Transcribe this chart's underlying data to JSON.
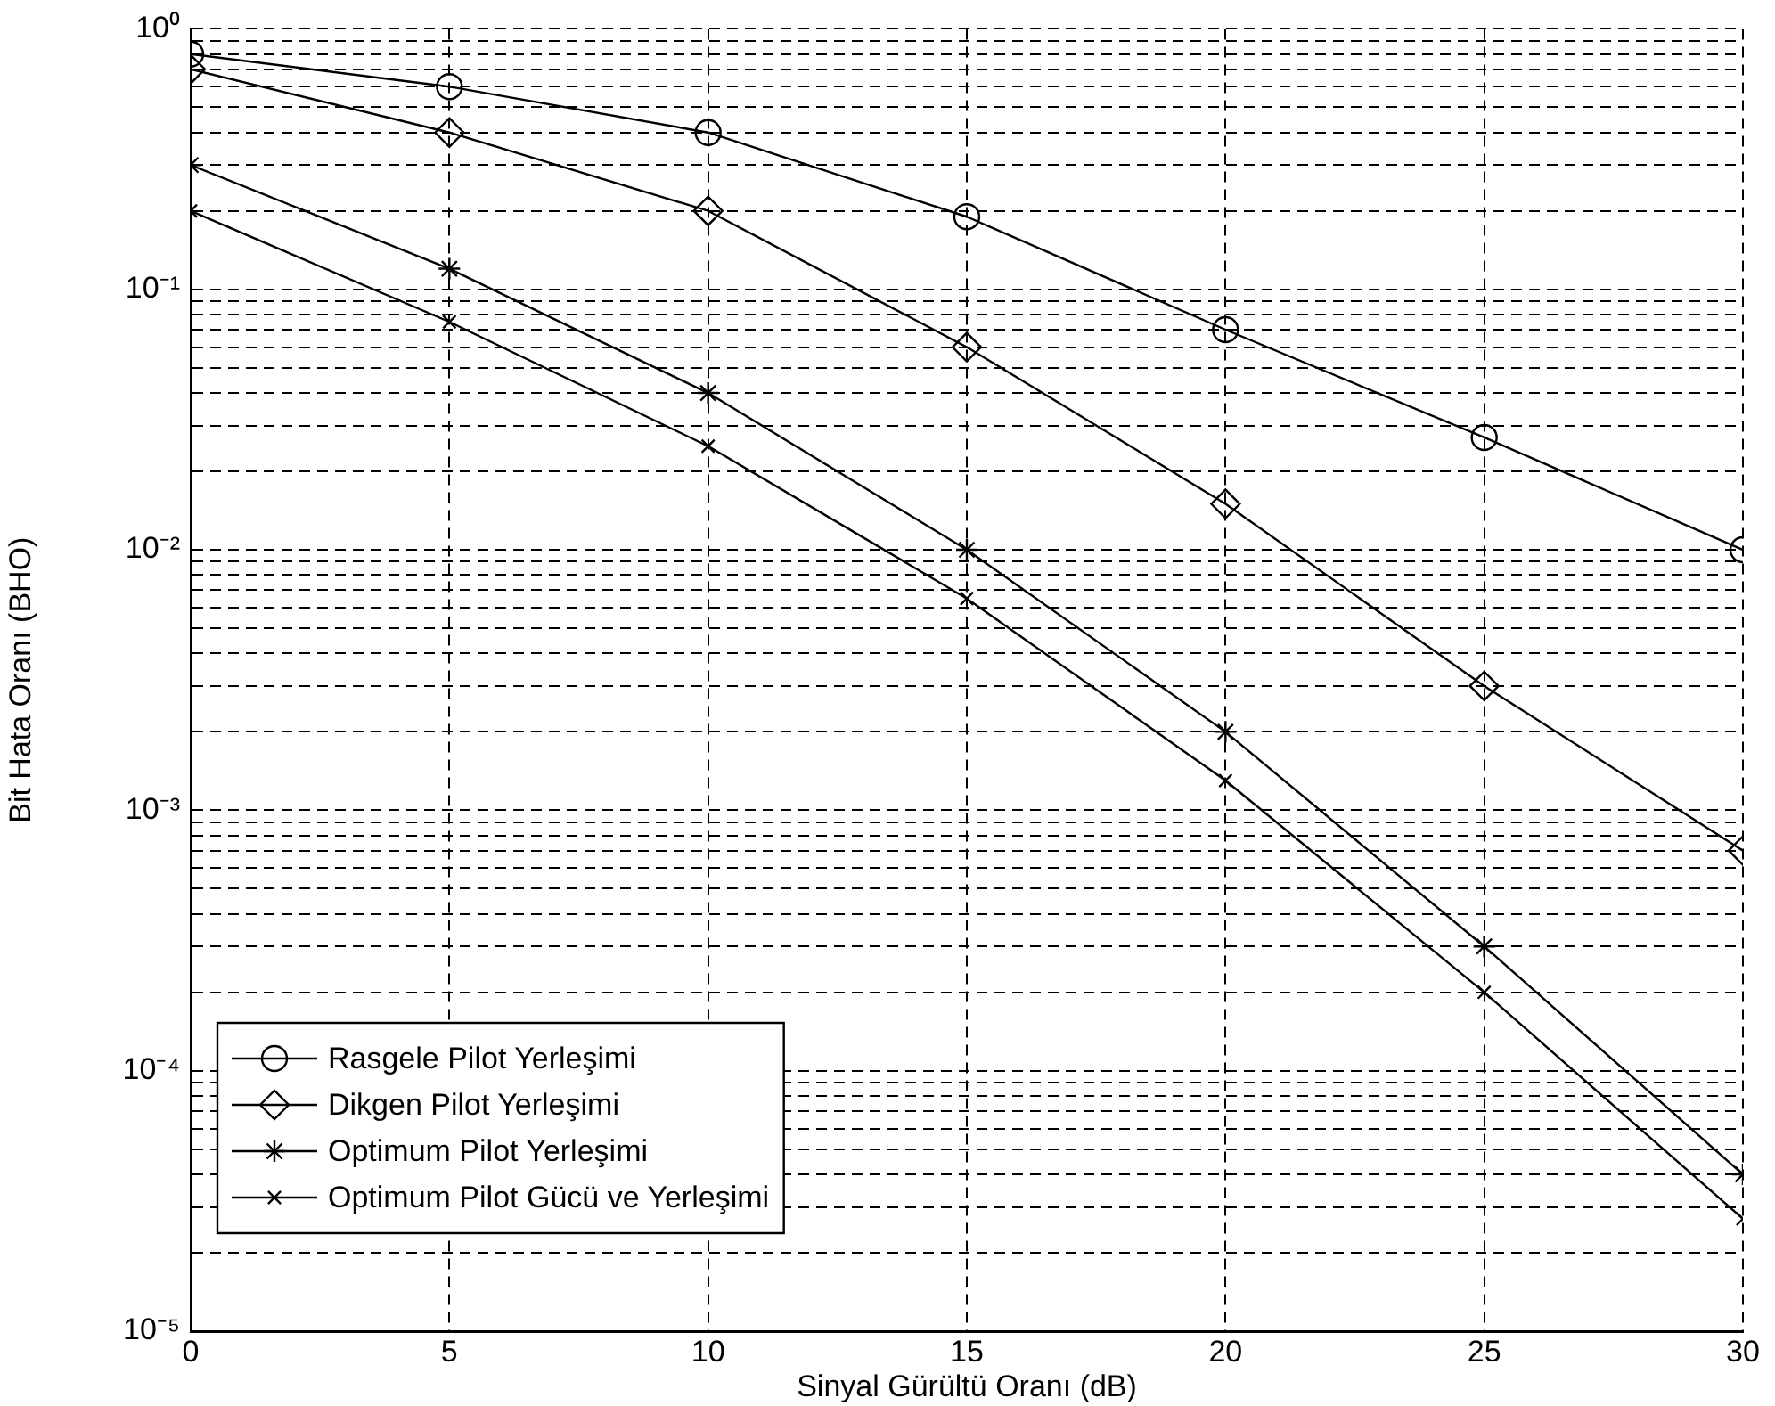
{
  "chart_data": {
    "type": "line",
    "xlabel": "Sinyal Gürültü Oranı (dB)",
    "ylabel": "Bit Hata Oranı (BHO)",
    "x": [
      0,
      5,
      10,
      15,
      20,
      25,
      30
    ],
    "series": [
      {
        "name": "Rasgele Pilot Yerleşimi",
        "color": "#000000",
        "marker": "circle",
        "values": [
          0.8,
          0.6,
          0.4,
          0.19,
          0.07,
          0.027,
          0.01
        ]
      },
      {
        "name": "Dikgen Pilot Yerleşimi",
        "color": "#000000",
        "marker": "diamond",
        "values": [
          0.7,
          0.4,
          0.2,
          0.06,
          0.015,
          0.003,
          0.0007
        ]
      },
      {
        "name": "Optimum Pilot Yerleşimi",
        "color": "#000000",
        "marker": "cross",
        "values": [
          0.3,
          0.12,
          0.04,
          0.01,
          0.002,
          0.0003,
          4e-05
        ]
      },
      {
        "name": "Optimum Pilot Gücü ve Yerleşimi",
        "color": "#000000",
        "marker": "cross",
        "values": [
          0.2,
          0.075,
          0.025,
          0.0065,
          0.0013,
          0.0002,
          2.7e-05
        ]
      }
    ],
    "log": "y",
    "grid": true,
    "legend": "bottom left",
    "line_style": "solid",
    "xlim": [
      0,
      30
    ],
    "xticks": [
      0,
      5,
      10,
      15,
      20,
      25,
      30
    ],
    "ylim": [
      1e-05,
      1
    ],
    "yticks": [
      {
        "value": 1e-05,
        "label": "10⁻⁵"
      },
      {
        "value": 2e-05,
        "label": null
      },
      {
        "value": 3e-05,
        "label": null
      },
      {
        "value": 4e-05,
        "label": null
      },
      {
        "value": 5e-05,
        "label": null
      },
      {
        "value": 6e-05,
        "label": null
      },
      {
        "value": 7e-05,
        "label": null
      },
      {
        "value": 8e-05,
        "label": null
      },
      {
        "value": 9e-05,
        "label": null
      },
      {
        "value": 0.0001,
        "label": "10⁻⁴"
      },
      {
        "value": 0.0002,
        "label": null
      },
      {
        "value": 0.0003,
        "label": null
      },
      {
        "value": 0.0004,
        "label": null
      },
      {
        "value": 0.0005,
        "label": null
      },
      {
        "value": 0.0006,
        "label": null
      },
      {
        "value": 0.0007,
        "label": null
      },
      {
        "value": 0.0008,
        "label": null
      },
      {
        "value": 0.0009,
        "label": null
      },
      {
        "value": 0.001,
        "label": "10⁻³"
      },
      {
        "value": 0.002,
        "label": null
      },
      {
        "value": 0.003,
        "label": null
      },
      {
        "value": 0.004,
        "label": null
      },
      {
        "value": 0.005,
        "label": null
      },
      {
        "value": 0.006,
        "label": null
      },
      {
        "value": 0.007,
        "label": null
      },
      {
        "value": 0.008,
        "label": null
      },
      {
        "value": 0.009,
        "label": null
      },
      {
        "value": 0.01,
        "label": "10⁻²"
      },
      {
        "value": 0.02,
        "label": null
      },
      {
        "value": 0.03,
        "label": null
      },
      {
        "value": 0.04,
        "label": null
      },
      {
        "value": 0.05,
        "label": null
      },
      {
        "value": 0.06,
        "label": null
      },
      {
        "value": 0.07,
        "label": null
      },
      {
        "value": 0.08,
        "label": null
      },
      {
        "value": 0.09,
        "label": null
      },
      {
        "value": 0.1,
        "label": "10⁻¹"
      },
      {
        "value": 0.2,
        "label": null
      },
      {
        "value": 0.3,
        "label": null
      },
      {
        "value": 0.4,
        "label": null
      },
      {
        "value": 0.5,
        "label": null
      },
      {
        "value": 0.6,
        "label": null
      },
      {
        "value": 0.7,
        "label": null
      },
      {
        "value": 0.8,
        "label": null
      },
      {
        "value": 0.9,
        "label": null
      },
      {
        "value": 1,
        "label": "10⁰"
      }
    ]
  }
}
